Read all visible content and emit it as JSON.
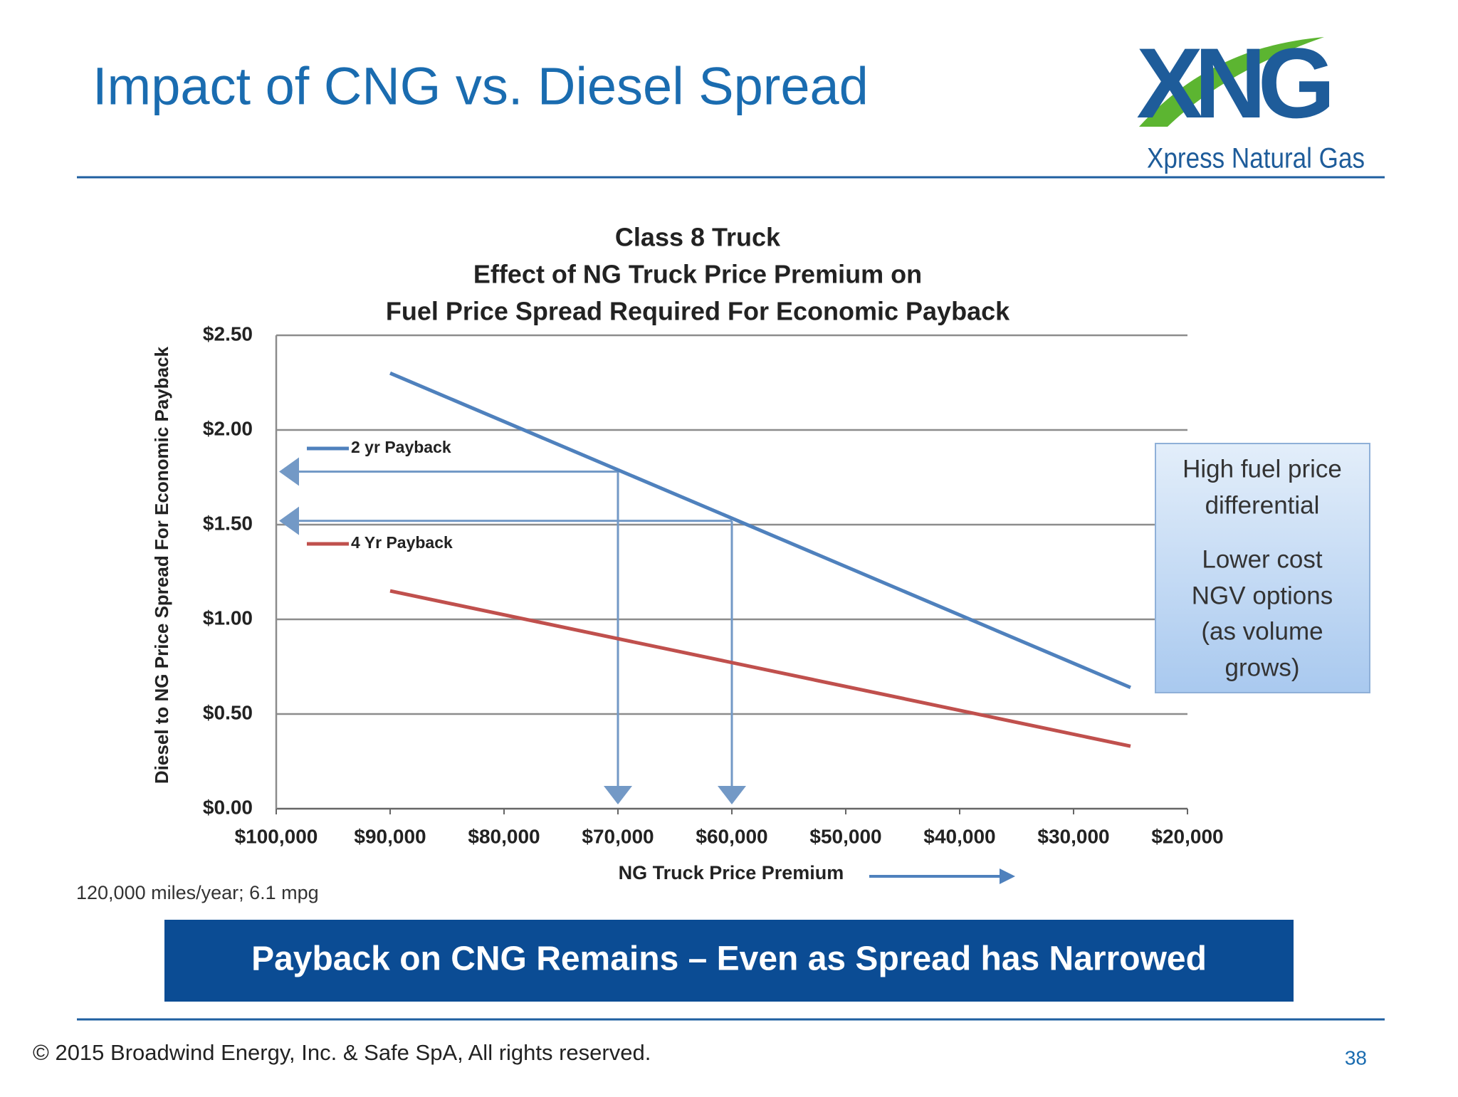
{
  "slide_title": "Impact of CNG vs. Diesel Spread",
  "logo": {
    "mark": "XNG",
    "name": "Xpress Natural Gas"
  },
  "banner": "Payback on CNG Remains – Even as Spread has Narrowed",
  "footer": "© 2015 Broadwind Energy, Inc. & Safe SpA, All rights reserved.",
  "page_number": "38",
  "chart_data": {
    "type": "line",
    "title": [
      "Class 8 Truck",
      "Effect of NG Truck Price Premium on",
      "Fuel Price Spread Required For Economic Payback"
    ],
    "x_label": "NG Truck Price Premium",
    "y_label": "Diesel to NG Price Spread For  Economic Payback",
    "note": "120,000 miles/year; 6.1 mpg",
    "xlim": [
      100000,
      20000
    ],
    "xticks": [
      {
        "value": 100000,
        "label": "$100,000"
      },
      {
        "value": 90000,
        "label": "$90,000"
      },
      {
        "value": 80000,
        "label": "$80,000"
      },
      {
        "value": 70000,
        "label": "$70,000"
      },
      {
        "value": 60000,
        "label": "$60,000"
      },
      {
        "value": 50000,
        "label": "$50,000"
      },
      {
        "value": 40000,
        "label": "$40,000"
      },
      {
        "value": 30000,
        "label": "$30,000"
      },
      {
        "value": 20000,
        "label": "$20,000"
      }
    ],
    "ylim": [
      0,
      2.5
    ],
    "yticks": [
      {
        "value": 0,
        "label": "$0.00"
      },
      {
        "value": 0.5,
        "label": "$0.50"
      },
      {
        "value": 1,
        "label": "$1.00"
      },
      {
        "value": 1.5,
        "label": "$1.50"
      },
      {
        "value": 2,
        "label": "$2.00"
      },
      {
        "value": 2.5,
        "label": "$2.50"
      }
    ],
    "grid": true,
    "legend": "upper left",
    "series": [
      {
        "name": "2 yr Payback",
        "color": "#4f81bd",
        "x": [
          90000,
          25000
        ],
        "values": [
          2.3,
          0.64
        ]
      },
      {
        "name": "4 Yr Payback",
        "color": "#c0504d",
        "x": [
          90000,
          25000
        ],
        "values": [
          1.15,
          0.33
        ]
      }
    ],
    "arrows": [
      {
        "x": 70000,
        "y": 1.78
      },
      {
        "x": 60000,
        "y": 1.52
      }
    ],
    "arrow_color": "#7399c6",
    "callout": [
      "High fuel price",
      "differential",
      "Lower cost",
      "NGV options",
      "(as volume",
      "grows)"
    ]
  }
}
